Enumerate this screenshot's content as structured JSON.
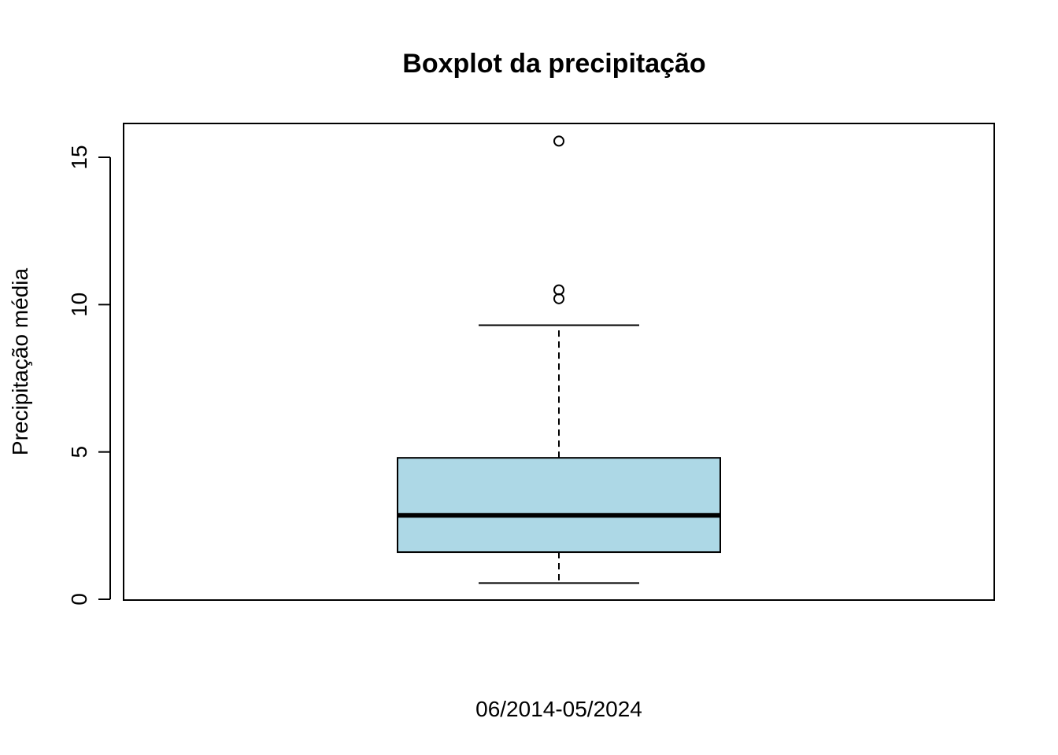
{
  "chart_data": {
    "type": "boxplot",
    "title": "Boxplot da precipitação",
    "xlabel": "06/2014-05/2024",
    "ylabel": "Precipitação média",
    "ylim": [
      0,
      16.2
    ],
    "yticks": [
      0,
      5,
      10,
      15
    ],
    "grid": false,
    "box_color": "#ADD8E6",
    "box": {
      "whisker_low": 0.55,
      "q1": 1.6,
      "median": 2.85,
      "q3": 4.8,
      "whisker_high": 9.3,
      "outliers": [
        10.2,
        10.5,
        15.55
      ]
    }
  }
}
